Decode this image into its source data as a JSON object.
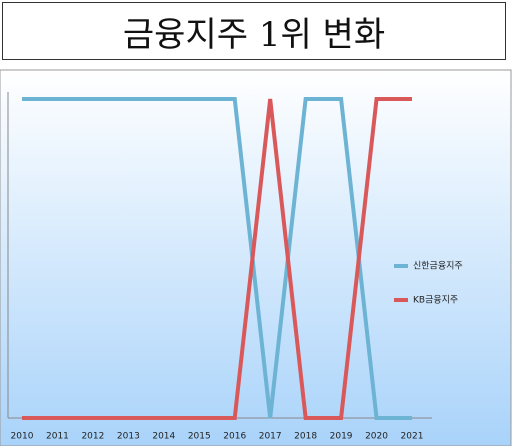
{
  "chart_data": {
    "type": "line",
    "title": "금융지주 1위 변화",
    "x": [
      2010,
      2011,
      2012,
      2013,
      2014,
      2015,
      2016,
      2017,
      2018,
      2019,
      2020,
      2021
    ],
    "xlim": [
      2010,
      2021
    ],
    "ylim": [
      0,
      1
    ],
    "legend": "right",
    "series": [
      {
        "name": "신한금융지주",
        "color": "#6db3d3",
        "values": [
          1,
          1,
          1,
          1,
          1,
          1,
          1,
          0,
          1,
          1,
          0,
          0
        ]
      },
      {
        "name": "KB금융지주",
        "color": "#d9595b",
        "values": [
          0,
          0,
          0,
          0,
          0,
          0,
          0,
          1,
          0,
          0,
          1,
          1
        ]
      }
    ]
  }
}
